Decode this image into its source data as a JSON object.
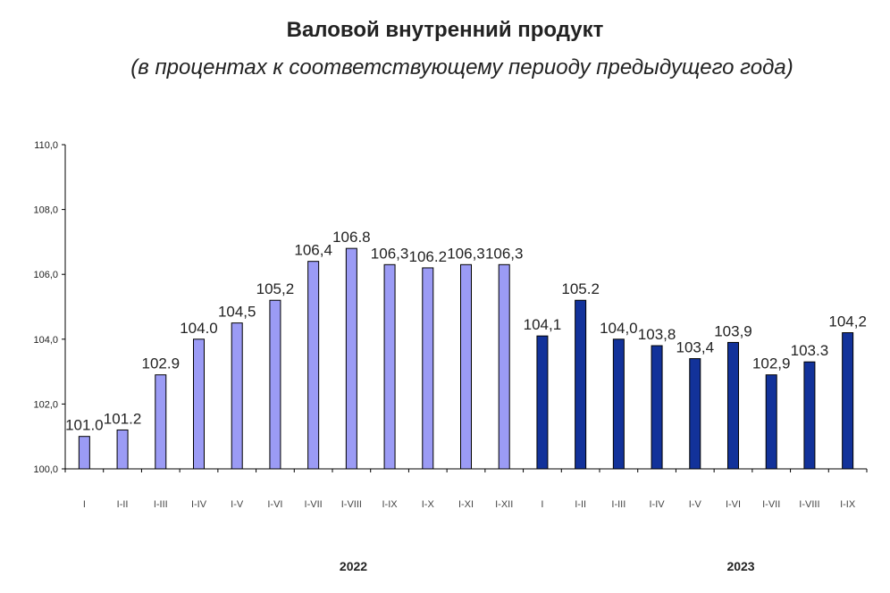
{
  "chart_data": {
    "type": "bar",
    "title": "Валовой внутренний продукт",
    "subtitle": "(в процентах к соответствующему периоду предыдущего года)",
    "xlabel": "",
    "ylabel": "",
    "ylim": [
      100,
      110
    ],
    "yticks": [
      "100,0",
      "102,0",
      "104,0",
      "106,0",
      "108,0",
      "110,0"
    ],
    "categories": [
      "I",
      "I-II",
      "I-III",
      "I-IV",
      "I-V",
      "I-VI",
      "I-VII",
      "I-VIII",
      "I-IX",
      "I-X",
      "I-XI",
      "I-XII",
      "I",
      "I-II",
      "I-III",
      "I-IV",
      "I-V",
      "I-VI",
      "I-VII",
      "I-VIII",
      "I-IX"
    ],
    "values": [
      101.0,
      101.2,
      102.9,
      104.0,
      104.5,
      105.2,
      106.4,
      106.8,
      106.3,
      106.2,
      106.3,
      106.3,
      104.1,
      105.2,
      104.0,
      103.8,
      103.4,
      103.9,
      102.9,
      103.3,
      104.2
    ],
    "value_labels": [
      "101.0",
      "101.2",
      "102.9",
      "104.0",
      "104,5",
      "105,2",
      "106,4",
      "106.8",
      "106,3",
      "106.2",
      "106,3",
      "106,3",
      "104,1",
      "105.2",
      "104,0",
      "103,8",
      "103,4",
      "103,9",
      "102,9",
      "103.3",
      "104,2"
    ],
    "groups": [
      {
        "label": "2022",
        "count": 12,
        "color": "#9b9bf5"
      },
      {
        "label": "2023",
        "count": 9,
        "color": "#12329a"
      }
    ],
    "grid": false,
    "legend": "none"
  }
}
